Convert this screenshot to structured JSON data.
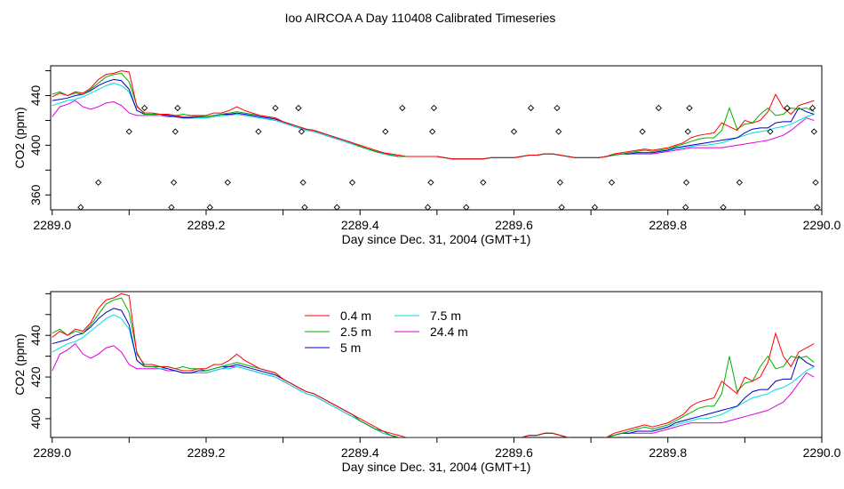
{
  "figure": {
    "title": "Ioo AIRCOA A  Day 110408  Calibrated Timeseries"
  },
  "colors": {
    "s04": "#ff0000",
    "s25": "#00b000",
    "s5": "#0000cc",
    "s75": "#00dddd",
    "s244": "#dd00dd",
    "axis": "#000000"
  },
  "chart_data": [
    {
      "type": "line",
      "title": "",
      "xlabel": "Day since Dec. 31, 2004 (GMT+1)",
      "ylabel": "CO2 (ppm)",
      "xlim": [
        2288.998,
        2290.0
      ],
      "ylim": [
        348,
        464
      ],
      "xticks": [
        2289.0,
        2289.2,
        2289.4,
        2289.6,
        2289.8,
        2290.0
      ],
      "xtick_labels": [
        "2289.0",
        "2289.2",
        "2289.4",
        "2289.6",
        "2289.8",
        "2290.0"
      ],
      "yticks": [
        360,
        400,
        440
      ],
      "ytick_labels": [
        "360",
        "400",
        "440"
      ],
      "grid": false,
      "legend": "none",
      "x": [
        2289.0,
        2289.01,
        2289.02,
        2289.03,
        2289.04,
        2289.05,
        2289.06,
        2289.07,
        2289.08,
        2289.09,
        2289.1,
        2289.11,
        2289.12,
        2289.13,
        2289.14,
        2289.15,
        2289.16,
        2289.17,
        2289.18,
        2289.19,
        2289.2,
        2289.21,
        2289.22,
        2289.23,
        2289.24,
        2289.25,
        2289.26,
        2289.27,
        2289.28,
        2289.29,
        2289.3,
        2289.31,
        2289.32,
        2289.33,
        2289.34,
        2289.35,
        2289.36,
        2289.37,
        2289.38,
        2289.39,
        2289.4,
        2289.41,
        2289.42,
        2289.43,
        2289.44,
        2289.45,
        2289.46,
        2289.47,
        2289.48,
        2289.49,
        2289.5,
        2289.51,
        2289.52,
        2289.53,
        2289.54,
        2289.55,
        2289.56,
        2289.57,
        2289.58,
        2289.59,
        2289.6,
        2289.61,
        2289.62,
        2289.63,
        2289.64,
        2289.65,
        2289.66,
        2289.67,
        2289.68,
        2289.69,
        2289.7,
        2289.71,
        2289.72,
        2289.73,
        2289.74,
        2289.75,
        2289.76,
        2289.77,
        2289.78,
        2289.79,
        2289.8,
        2289.81,
        2289.82,
        2289.83,
        2289.84,
        2289.85,
        2289.86,
        2289.87,
        2289.88,
        2289.89,
        2289.9,
        2289.91,
        2289.92,
        2289.93,
        2289.94,
        2289.95,
        2289.96,
        2289.97,
        2289.98,
        2289.99
      ],
      "series": [
        {
          "name": "0.4 m",
          "color_key": "s04",
          "values": [
            439,
            442,
            440,
            443,
            442,
            446,
            453,
            457,
            458,
            460,
            459,
            431,
            426,
            426,
            425,
            425,
            424,
            423,
            423,
            424,
            424,
            426,
            426,
            428,
            431,
            428,
            426,
            424,
            423,
            422,
            419,
            417,
            415,
            413,
            412,
            410,
            408,
            406,
            404,
            402,
            400,
            398,
            396,
            394,
            393,
            392,
            391,
            391,
            391,
            391,
            391,
            390,
            389,
            389,
            389,
            389,
            389,
            390,
            390,
            390,
            390,
            391,
            392,
            392,
            393,
            393,
            392,
            391,
            390,
            390,
            390,
            390,
            391,
            393,
            394,
            395,
            396,
            397,
            396,
            397,
            398,
            400,
            402,
            406,
            408,
            409,
            410,
            418,
            415,
            412,
            420,
            418,
            420,
            427,
            441,
            430,
            425,
            432,
            434,
            436
          ]
        },
        {
          "name": "2.5 m",
          "color_key": "s25",
          "values": [
            441,
            443,
            440,
            442,
            441,
            445,
            450,
            455,
            457,
            458,
            451,
            432,
            425,
            425,
            425,
            425,
            424,
            425,
            424,
            424,
            423,
            424,
            425,
            426,
            427,
            426,
            425,
            424,
            423,
            422,
            419,
            417,
            415,
            413,
            412,
            410,
            408,
            406,
            404,
            402,
            399,
            397,
            395,
            394,
            392,
            391,
            391,
            391,
            391,
            391,
            391,
            390,
            389,
            389,
            389,
            389,
            389,
            390,
            390,
            390,
            390,
            391,
            392,
            392,
            393,
            393,
            392,
            391,
            390,
            390,
            390,
            390,
            391,
            392,
            393,
            394,
            395,
            396,
            395,
            396,
            397,
            399,
            401,
            403,
            405,
            406,
            406,
            412,
            430,
            413,
            417,
            418,
            425,
            430,
            424,
            425,
            430,
            429,
            430,
            427
          ]
        },
        {
          "name": "5 m",
          "color_key": "s5",
          "values": [
            436,
            437,
            438,
            440,
            441,
            444,
            448,
            451,
            453,
            452,
            445,
            428,
            425,
            425,
            425,
            424,
            423,
            422,
            422,
            423,
            423,
            424,
            425,
            425,
            426,
            425,
            424,
            423,
            422,
            421,
            419,
            417,
            415,
            413,
            412,
            410,
            408,
            406,
            404,
            402,
            399,
            397,
            395,
            394,
            392,
            391,
            391,
            391,
            391,
            391,
            391,
            390,
            389,
            389,
            389,
            389,
            389,
            390,
            390,
            390,
            390,
            391,
            392,
            392,
            393,
            393,
            392,
            391,
            390,
            390,
            390,
            390,
            391,
            392,
            393,
            393,
            394,
            394,
            394,
            395,
            396,
            398,
            399,
            400,
            401,
            402,
            403,
            404,
            405,
            406,
            410,
            413,
            414,
            414,
            418,
            419,
            419,
            430,
            427,
            425
          ]
        },
        {
          "name": "7.5 m",
          "color_key": "s75",
          "values": [
            432,
            434,
            436,
            437,
            439,
            442,
            445,
            448,
            450,
            448,
            443,
            428,
            425,
            425,
            424,
            424,
            423,
            422,
            422,
            422,
            422,
            423,
            424,
            424,
            425,
            424,
            423,
            422,
            421,
            420,
            418,
            416,
            414,
            412,
            411,
            409,
            407,
            405,
            403,
            401,
            399,
            397,
            395,
            393,
            392,
            391,
            391,
            391,
            391,
            391,
            391,
            390,
            389,
            389,
            389,
            389,
            389,
            390,
            390,
            390,
            390,
            391,
            392,
            392,
            393,
            393,
            392,
            391,
            390,
            390,
            390,
            390,
            391,
            392,
            393,
            393,
            394,
            394,
            394,
            395,
            396,
            397,
            398,
            399,
            400,
            400,
            401,
            402,
            404,
            406,
            408,
            410,
            411,
            412,
            414,
            415,
            417,
            420,
            423,
            425
          ]
        },
        {
          "name": "24.4 m",
          "color_key": "s244",
          "values": [
            423,
            431,
            433,
            436,
            431,
            429,
            431,
            434,
            435,
            432,
            426,
            424,
            424,
            424,
            424,
            423,
            423,
            422,
            422,
            422,
            422,
            423,
            424,
            425,
            425,
            424,
            423,
            422,
            421,
            420,
            418,
            416,
            414,
            412,
            411,
            409,
            407,
            405,
            403,
            401,
            399,
            397,
            395,
            393,
            392,
            391,
            391,
            391,
            391,
            391,
            391,
            390,
            389,
            389,
            389,
            389,
            389,
            390,
            390,
            390,
            390,
            391,
            392,
            392,
            393,
            393,
            392,
            391,
            390,
            390,
            390,
            390,
            391,
            392,
            393,
            393,
            393,
            393,
            393,
            394,
            395,
            396,
            397,
            398,
            398,
            398,
            398,
            398,
            399,
            400,
            401,
            402,
            403,
            404,
            406,
            408,
            412,
            417,
            422,
            420
          ]
        }
      ],
      "markers": {
        "style": "open-diamond",
        "points": [
          [
            2289.037,
            350
          ],
          [
            2289.06,
            370
          ],
          [
            2289.1,
            411
          ],
          [
            2289.12,
            430
          ],
          [
            2289.155,
            350
          ],
          [
            2289.158,
            370
          ],
          [
            2289.16,
            411
          ],
          [
            2289.163,
            430
          ],
          [
            2289.205,
            350
          ],
          [
            2289.228,
            370
          ],
          [
            2289.268,
            411
          ],
          [
            2289.29,
            430
          ],
          [
            2289.32,
            430
          ],
          [
            2289.324,
            411
          ],
          [
            2289.326,
            370
          ],
          [
            2289.328,
            350
          ],
          [
            2289.37,
            350
          ],
          [
            2289.39,
            370
          ],
          [
            2289.433,
            411
          ],
          [
            2289.455,
            430
          ],
          [
            2289.488,
            350
          ],
          [
            2289.492,
            370
          ],
          [
            2289.494,
            411
          ],
          [
            2289.496,
            430
          ],
          [
            2289.538,
            350
          ],
          [
            2289.56,
            370
          ],
          [
            2289.6,
            411
          ],
          [
            2289.622,
            430
          ],
          [
            2289.656,
            430
          ],
          [
            2289.658,
            411
          ],
          [
            2289.66,
            370
          ],
          [
            2289.662,
            350
          ],
          [
            2289.705,
            350
          ],
          [
            2289.727,
            370
          ],
          [
            2289.767,
            411
          ],
          [
            2289.788,
            430
          ],
          [
            2289.823,
            350
          ],
          [
            2289.824,
            370
          ],
          [
            2289.826,
            411
          ],
          [
            2289.828,
            430
          ],
          [
            2289.872,
            350
          ],
          [
            2289.893,
            370
          ],
          [
            2289.933,
            411
          ],
          [
            2289.955,
            430
          ],
          [
            2289.988,
            430
          ],
          [
            2289.99,
            411
          ],
          [
            2289.992,
            370
          ],
          [
            2289.994,
            350
          ]
        ]
      }
    },
    {
      "type": "line",
      "title": "",
      "xlabel": "Day since Dec. 31, 2004 (GMT+1)",
      "ylabel": "CO2 (ppm)",
      "xlim": [
        2288.998,
        2290.0
      ],
      "ylim": [
        391,
        461
      ],
      "xticks": [
        2289.0,
        2289.2,
        2289.4,
        2289.6,
        2289.8,
        2290.0
      ],
      "xtick_labels": [
        "2289.0",
        "2289.2",
        "2289.4",
        "2289.6",
        "2289.8",
        "2290.0"
      ],
      "yticks": [
        400,
        420,
        440
      ],
      "ytick_labels": [
        "400",
        "420",
        "440"
      ],
      "grid": false,
      "legend": "top-center",
      "legend_entries": [
        "0.4 m",
        "2.5 m",
        "5 m",
        "7.5 m",
        "24.4 m"
      ],
      "series_ref": "same-as-panel-1"
    }
  ]
}
